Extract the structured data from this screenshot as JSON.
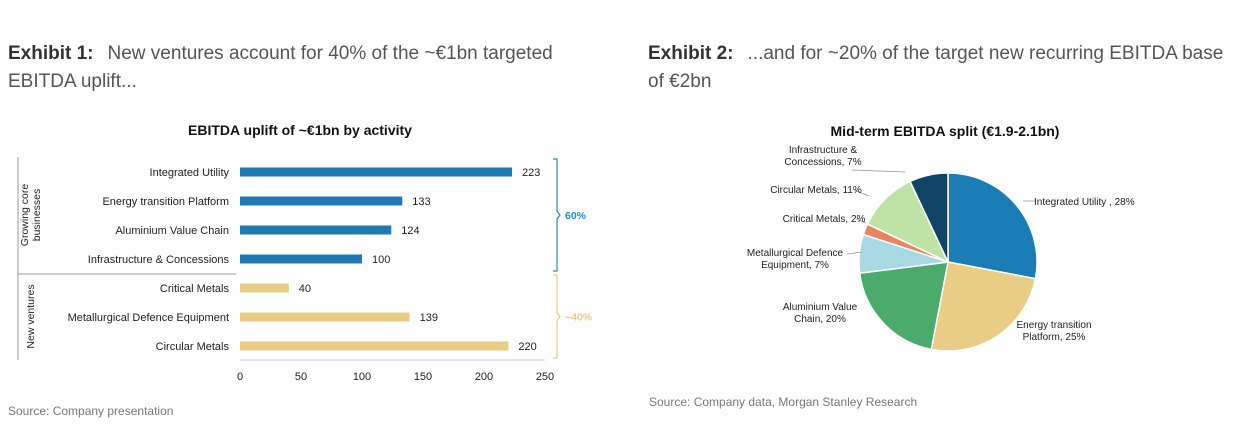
{
  "exhibit1": {
    "label": "Exhibit 1:",
    "text": "New ventures account for 40% of the ~€1bn targeted EBITDA uplift...",
    "source": "Source: Company presentation"
  },
  "exhibit2": {
    "label": "Exhibit 2:",
    "text": "...and for ~20% of the target new recurring EBITDA base of €2bn",
    "source": "Source: Company data, Morgan Stanley Research"
  },
  "chart_data": [
    {
      "type": "bar",
      "orientation": "horizontal",
      "title": "EBITDA uplift of ~€1bn by activity",
      "categories": [
        "Integrated Utility",
        "Energy transition Platform",
        "Aluminium Value Chain",
        "Infrastructure & Concessions",
        "Critical Metals",
        "Metallurgical Defence Equipment",
        "Circular Metals"
      ],
      "values": [
        223,
        133,
        124,
        100,
        40,
        139,
        220
      ],
      "colors": [
        "#1f7ab3",
        "#1f7ab3",
        "#1f7ab3",
        "#1f7ab3",
        "#e9cd86",
        "#e9cd86",
        "#e9cd86"
      ],
      "xlim": [
        0,
        250
      ],
      "xticks": [
        0,
        50,
        100,
        150,
        200,
        250
      ],
      "groups": [
        {
          "label": "Growing core businesses",
          "label_lines": [
            "Growing core",
            "businesses"
          ],
          "count": 4,
          "share": "60%",
          "color": "#1f8fc8"
        },
        {
          "label": "New ventures",
          "label_lines": [
            "New ventures"
          ],
          "count": 3,
          "share": "~40%",
          "color": "#e9cd86"
        }
      ],
      "grid": false,
      "legend": "none"
    },
    {
      "type": "pie",
      "title": "Mid-term EBITDA split (€1.9-2.1bn)",
      "slices": [
        {
          "label": "Integrated Utility , 28%",
          "label_lines": [
            "Integrated Utility , 28%"
          ],
          "value": 28,
          "color": "#1a7db5"
        },
        {
          "label": "Energy transition Platform, 25%",
          "label_lines": [
            "Energy transition",
            "Platform, 25%"
          ],
          "value": 25,
          "color": "#e9cd86"
        },
        {
          "label": "Aluminium Value Chain, 20%",
          "label_lines": [
            "Aluminium Value",
            "Chain, 20%"
          ],
          "value": 20,
          "color": "#4aab6d"
        },
        {
          "label": "Metallurgical Defence Equipment, 7%",
          "label_lines": [
            "Metallurgical Defence",
            "Equipment, 7%"
          ],
          "value": 7,
          "color": "#a8d8e2"
        },
        {
          "label": "Critical Metals, 2%",
          "label_lines": [
            "Critical Metals, 2%"
          ],
          "value": 2,
          "color": "#e8845f"
        },
        {
          "label": "Circular Metals, 11%",
          "label_lines": [
            "Circular Metals, 11%"
          ],
          "value": 11,
          "color": "#bfe3a6"
        },
        {
          "label": "Infrastructure & Concessions, 7%",
          "label_lines": [
            "Infrastructure &",
            "Concessions, 7%"
          ],
          "value": 7,
          "color": "#0f4466"
        }
      ],
      "legend": "none"
    }
  ]
}
